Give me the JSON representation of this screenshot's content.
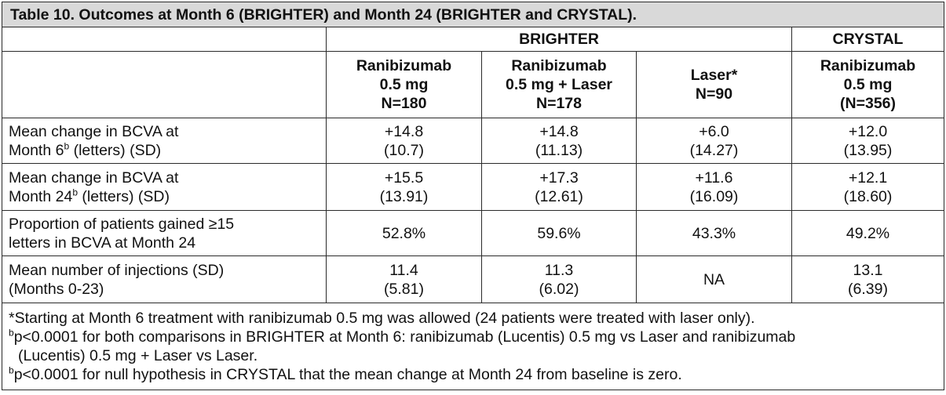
{
  "title": "Table 10. Outcomes at Month 6 (BRIGHTER) and Month 24 (BRIGHTER and CRYSTAL).",
  "groups": {
    "brighter": "BRIGHTER",
    "crystal": "CRYSTAL"
  },
  "columns": [
    {
      "line1": "Ranibizumab",
      "line2": "0.5 mg",
      "line3": "N=180"
    },
    {
      "line1": "Ranibizumab",
      "line2": "0.5 mg + Laser",
      "line3": "N=178"
    },
    {
      "line1": "Laser*",
      "line2": "N=90"
    },
    {
      "line1": "Ranibizumab",
      "line2": "0.5 mg",
      "line3": "(N=356)"
    }
  ],
  "rows": [
    {
      "label_line1": "Mean change in BCVA at",
      "label_line2_pre": "Month 6",
      "label_sup": "b",
      "label_line2_post": " (letters) (SD)",
      "cells": [
        {
          "v": "+14.8",
          "sd": "(10.7)"
        },
        {
          "v": "+14.8",
          "sd": "(11.13)"
        },
        {
          "v": "+6.0",
          "sd": "(14.27)"
        },
        {
          "v": "+12.0",
          "sd": "(13.95)"
        }
      ]
    },
    {
      "label_line1": "Mean change in BCVA at",
      "label_line2_pre": "Month 24",
      "label_sup": "b",
      "label_line2_post": " (letters) (SD)",
      "cells": [
        {
          "v": "+15.5",
          "sd": "(13.91)"
        },
        {
          "v": "+17.3",
          "sd": "(12.61)"
        },
        {
          "v": "+11.6",
          "sd": "(16.09)"
        },
        {
          "v": "+12.1",
          "sd": "(18.60)"
        }
      ]
    },
    {
      "label_line1": "Proportion of patients gained ≥15",
      "label_line2": "letters in BCVA at Month 24",
      "cells": [
        {
          "v": "52.8%"
        },
        {
          "v": "59.6%"
        },
        {
          "v": "43.3%"
        },
        {
          "v": "49.2%"
        }
      ]
    },
    {
      "label_line1": "Mean number of injections (SD)",
      "label_line2": "(Months 0-23)",
      "cells": [
        {
          "v": "11.4",
          "sd": "(5.81)"
        },
        {
          "v": "11.3",
          "sd": "(6.02)"
        },
        {
          "v": "NA"
        },
        {
          "v": "13.1",
          "sd": "(6.39)"
        }
      ]
    }
  ],
  "footnotes": {
    "asterisk": "*Starting at Month 6 treatment with ranibizumab 0.5 mg was allowed (24 patients were treated with laser only).",
    "b1_sup": "b",
    "b1_line1": "p<0.0001 for both comparisons in BRIGHTER at Month 6: ranibizumab (Lucentis) 0.5 mg vs Laser and ranibizumab",
    "b1_line2": "(Lucentis) 0.5 mg + Laser vs Laser.",
    "b2_sup": "b",
    "b2_line1": "p<0.0001 for null hypothesis in CRYSTAL that the mean change at Month 24 from baseline is zero."
  }
}
